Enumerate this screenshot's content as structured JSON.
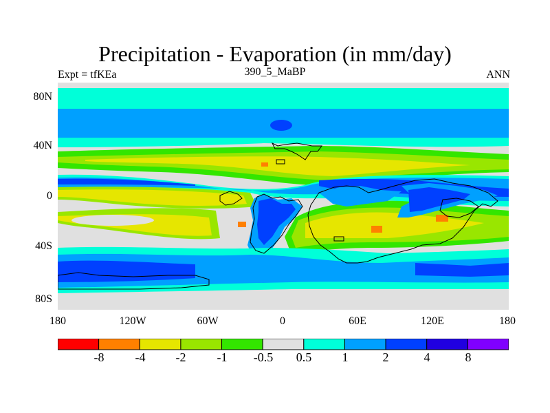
{
  "title": "Precipitation - Evaporation (in mm/day)",
  "left_string": "Expt = tfKEa",
  "center_string": "390_5_MaBP",
  "right_string": "ANN",
  "lat_ticks": [
    "80N",
    "40N",
    "0",
    "40S",
    "80S"
  ],
  "lon_ticks": [
    "180",
    "120W",
    "60W",
    "0",
    "60E",
    "120E",
    "180"
  ],
  "colorbar": {
    "colors": [
      "#ff0000",
      "#ff8000",
      "#e6e600",
      "#99e600",
      "#33e600",
      "#e0e0e0",
      "#00ffd9",
      "#00a0ff",
      "#0040ff",
      "#2000e0",
      "#8000ff"
    ],
    "labels": [
      "-8",
      "-4",
      "-2",
      "-1",
      "-0.5",
      "0.5",
      "1",
      "2",
      "4",
      "8"
    ]
  }
}
